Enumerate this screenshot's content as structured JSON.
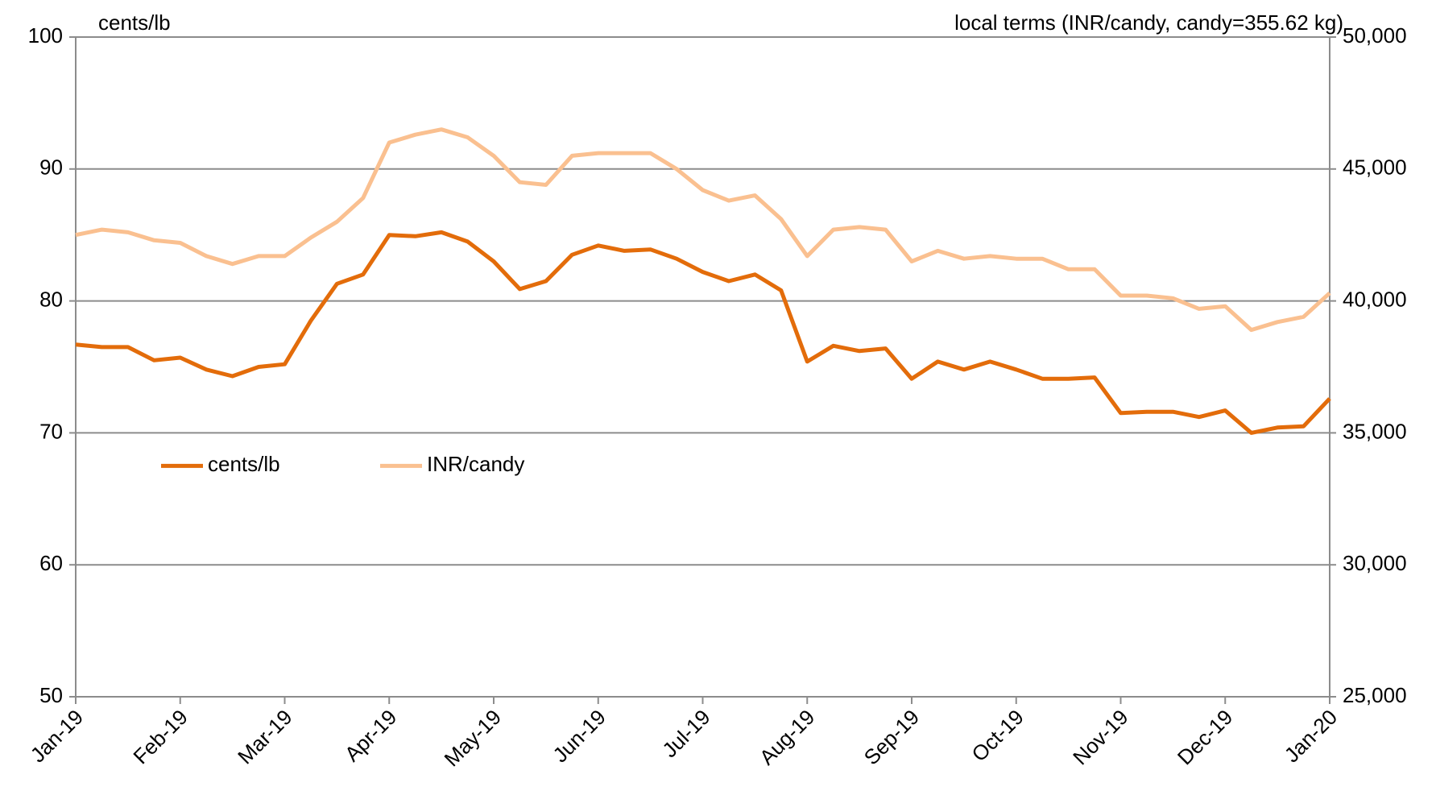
{
  "chart_data": {
    "type": "line",
    "y_label": "cents/lb",
    "y2_label": "local terms (INR/candy, candy=355.62 kg)",
    "categories": [
      "Jan-19",
      null,
      null,
      null,
      "Feb-19",
      null,
      null,
      null,
      "Mar-19",
      null,
      null,
      null,
      "Apr-19",
      null,
      null,
      null,
      "May-19",
      null,
      null,
      null,
      "Jun-19",
      null,
      null,
      null,
      "Jul-19",
      null,
      null,
      null,
      "Aug-19",
      null,
      null,
      null,
      "Sep-19",
      null,
      null,
      null,
      "Oct-19",
      null,
      null,
      null,
      "Nov-19",
      null,
      null,
      null,
      "Dec-19",
      null,
      null,
      null,
      "Jan-20"
    ],
    "series": [
      {
        "name": "cents/lb",
        "color": "#e36c0a",
        "axis": "y",
        "values": [
          76.7,
          76.5,
          76.5,
          75.5,
          75.7,
          74.8,
          74.3,
          75.0,
          75.2,
          78.5,
          81.3,
          82.0,
          85.0,
          84.9,
          85.2,
          84.5,
          83.0,
          80.9,
          81.5,
          83.5,
          84.2,
          83.8,
          83.9,
          83.2,
          82.2,
          81.5,
          82.0,
          80.8,
          75.4,
          76.6,
          76.2,
          76.4,
          74.1,
          75.4,
          74.8,
          75.4,
          74.8,
          74.1,
          74.1,
          74.2,
          71.5,
          71.6,
          71.6,
          71.2,
          71.7,
          70.0,
          70.4,
          70.5,
          72.6
        ]
      },
      {
        "name": "INR/candy",
        "color": "#fac090",
        "axis": "y2",
        "values": [
          42500,
          42700,
          42600,
          42300,
          42200,
          41700,
          41400,
          41700,
          41700,
          42400,
          43000,
          43900,
          46000,
          46300,
          46500,
          46200,
          45500,
          44500,
          44400,
          45500,
          45600,
          45600,
          45600,
          45000,
          44200,
          43800,
          44000,
          43100,
          41700,
          42700,
          42800,
          42700,
          41500,
          41900,
          41600,
          41700,
          41600,
          41600,
          41200,
          41200,
          40200,
          40200,
          40100,
          39700,
          39800,
          38900,
          39200,
          39400,
          40300
        ]
      }
    ],
    "ylim": [
      50,
      100
    ],
    "yticks": [
      50,
      60,
      70,
      80,
      90,
      100
    ],
    "y2lim": [
      25000,
      50000
    ],
    "y2ticks": [
      {
        "value": 25000,
        "label": "25,000"
      },
      {
        "value": 30000,
        "label": "30,000"
      },
      {
        "value": 35000,
        "label": "35,000"
      },
      {
        "value": 40000,
        "label": "40,000"
      },
      {
        "value": 45000,
        "label": "45,000"
      },
      {
        "value": 50000,
        "label": "50,000"
      }
    ],
    "grid": true,
    "legend": "left"
  }
}
